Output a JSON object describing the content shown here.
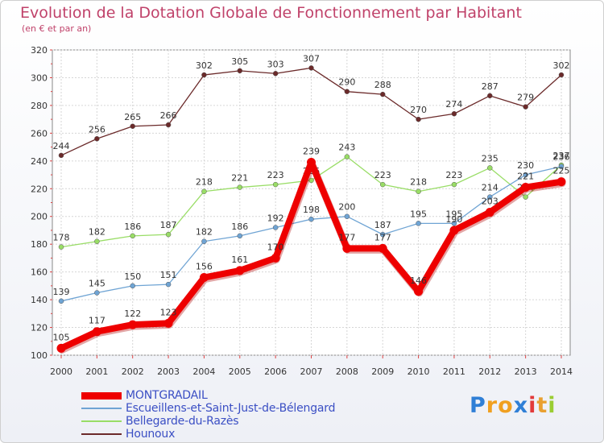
{
  "header": {
    "title": "Evolution de la Dotation Globale de Fonctionnement par Habitant",
    "subtitle": "(en € et par an)"
  },
  "brand": {
    "letters": [
      "P",
      "r",
      "o",
      "x",
      "i",
      "t",
      "i"
    ],
    "colors": [
      "#2f7fd6",
      "#f0a020",
      "#f0a020",
      "#2f7fd6",
      "#e23a3a",
      "#e9a030",
      "#9acd32"
    ]
  },
  "chart_data": {
    "type": "line",
    "x": [
      "2000",
      "2001",
      "2002",
      "2003",
      "2004",
      "2005",
      "2006",
      "2007",
      "2008",
      "2009",
      "2010",
      "2011",
      "2012",
      "2013",
      "2014"
    ],
    "ylim": [
      100,
      320
    ],
    "yticks": [
      "100",
      "120",
      "140",
      "160",
      "180",
      "200",
      "220",
      "240",
      "260",
      "280",
      "300",
      "320"
    ],
    "grid": true,
    "legend_position": "bottom-left",
    "series": [
      {
        "name": "Hounoux",
        "color": "#6b2a2a",
        "values": [
          244,
          256,
          265,
          266,
          302,
          305,
          303,
          307,
          290,
          288,
          270,
          274,
          287,
          279,
          302
        ]
      },
      {
        "name": "Bellegarde-du-Razès",
        "color": "#99dd66",
        "values": [
          178,
          182,
          186,
          187,
          218,
          221,
          223,
          226,
          243,
          223,
          218,
          223,
          235,
          214,
          237
        ]
      },
      {
        "name": "Escueillens-et-Saint-Just-de-Bélengard",
        "color": "#6fa4d4",
        "values": [
          139,
          145,
          150,
          151,
          182,
          186,
          192,
          198,
          200,
          187,
          195,
          195,
          214,
          230,
          236
        ]
      },
      {
        "name": "MONTGRADAIL",
        "color": "#ee0000",
        "values": [
          105,
          117,
          122,
          123,
          156,
          161,
          170,
          239,
          177,
          177,
          146,
          190,
          203,
          221,
          225
        ]
      }
    ],
    "legend": [
      "MONTGRADAIL",
      "Escueillens-et-Saint-Just-de-Bélengard",
      "Bellegarde-du-Razès",
      "Hounoux"
    ]
  }
}
